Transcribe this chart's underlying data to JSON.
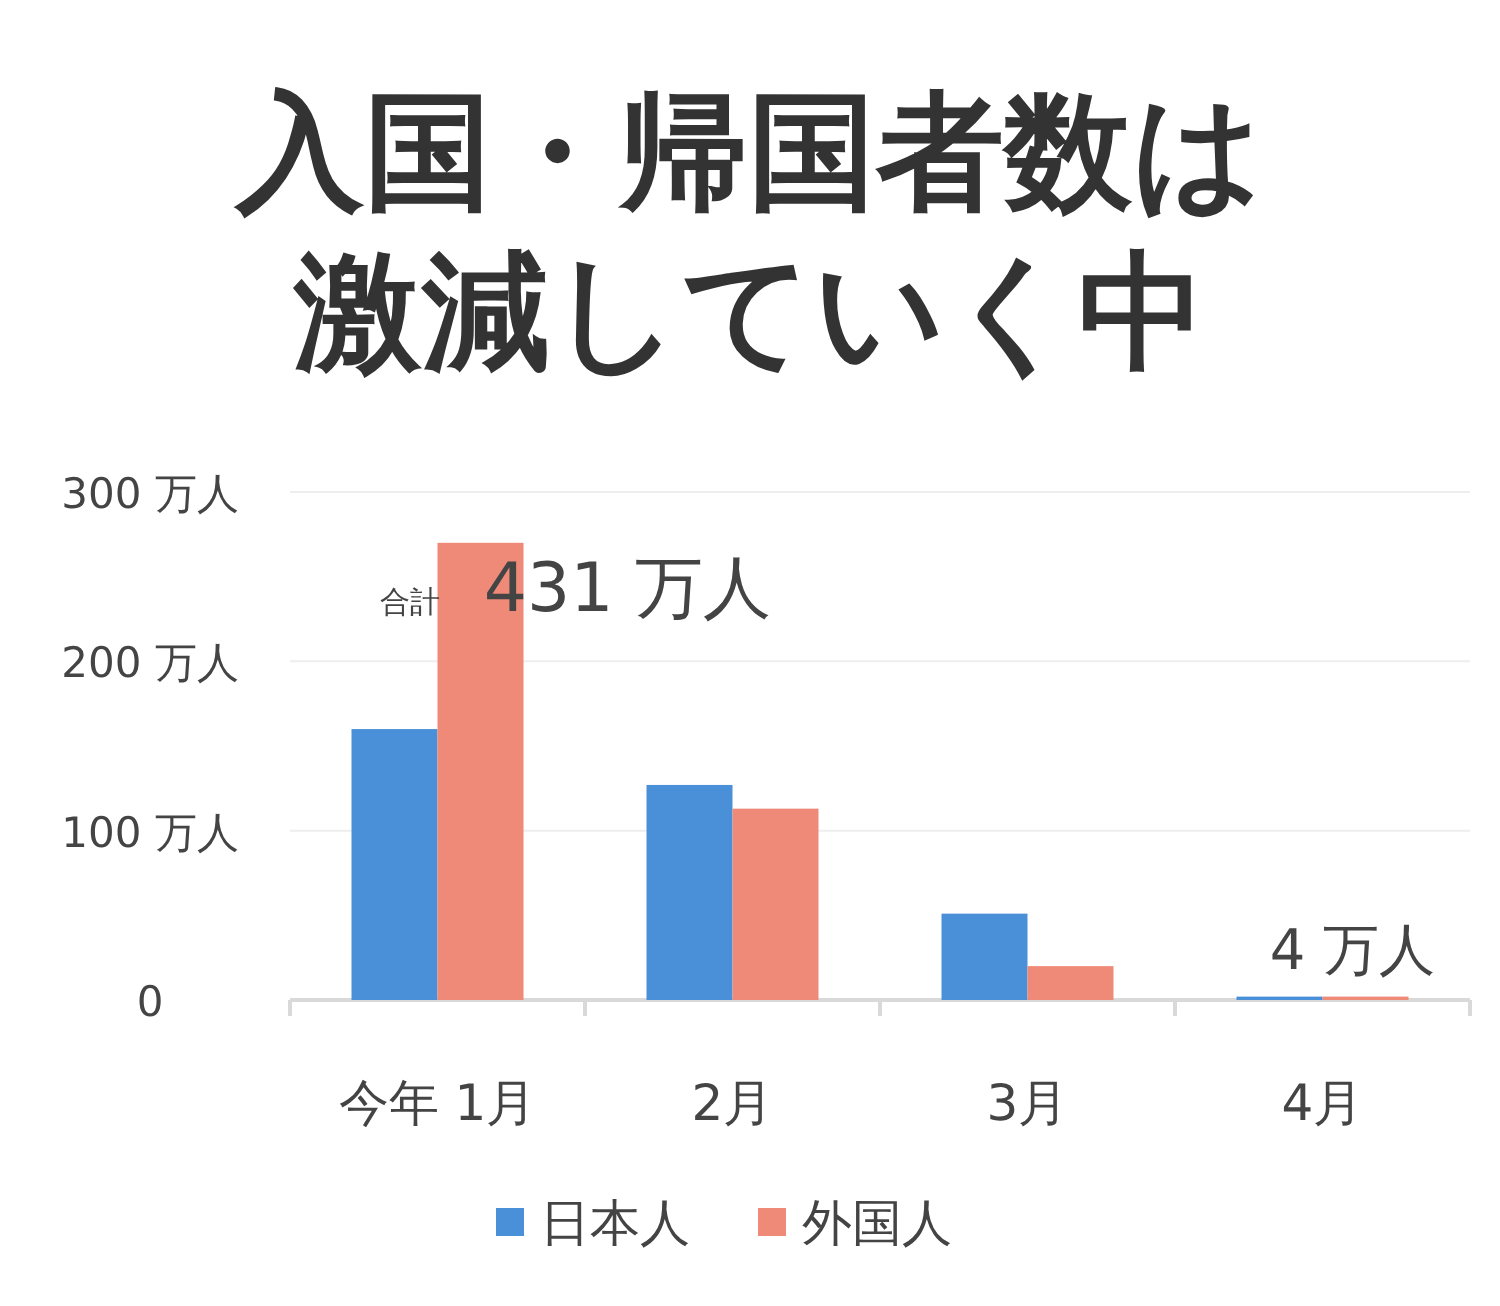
{
  "chart_data": {
    "type": "bar",
    "title": "入国・帰国者数は激減していく中",
    "categories": [
      "今年 1月",
      "2月",
      "3月",
      "4月"
    ],
    "series": [
      {
        "name": "日本人",
        "color": "#4a90d9",
        "values": [
          160,
          127,
          51,
          2
        ]
      },
      {
        "name": "外国人",
        "color": "#f08a78",
        "values": [
          270,
          113,
          20,
          2
        ]
      }
    ],
    "ylim": [
      0,
      300
    ],
    "yticks": [
      {
        "value": 0,
        "label": "0"
      },
      {
        "value": 100,
        "label": "100 万人"
      },
      {
        "value": 200,
        "label": "200 万人"
      },
      {
        "value": 300,
        "label": "300 万人"
      }
    ],
    "grid": "y",
    "legend": "bottom",
    "annotations": [
      "合計",
      {
        "text": "431 万人",
        "x": "今年 1月",
        "y": 230
      },
      {
        "text": "4 万人",
        "x": "4月",
        "y": 4
      }
    ]
  }
}
